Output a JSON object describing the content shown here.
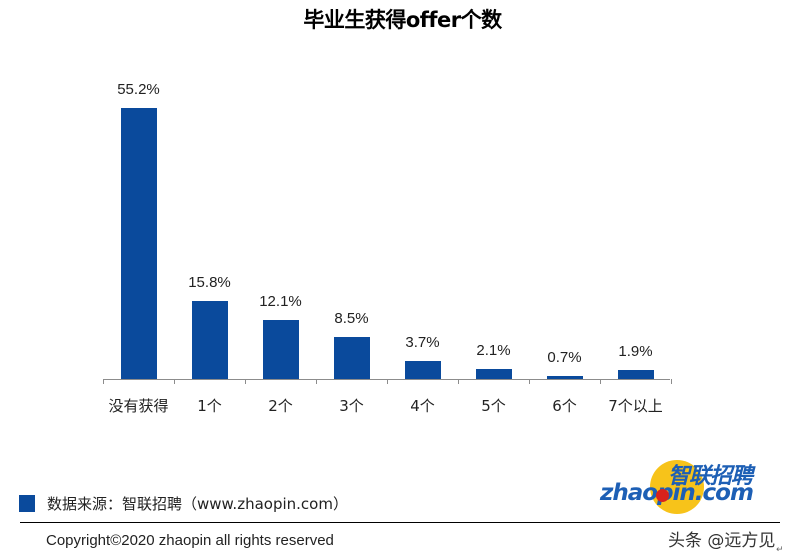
{
  "title": "毕业生获得offer个数",
  "chart_data": {
    "type": "bar",
    "title": "毕业生获得offer个数",
    "categories": [
      "没有获得",
      "1个",
      "2个",
      "3个",
      "4个",
      "5个",
      "6个",
      "7个以上"
    ],
    "values": [
      55.2,
      15.8,
      12.1,
      8.5,
      3.7,
      2.1,
      0.7,
      1.9
    ],
    "labels": [
      "55.2%",
      "15.8%",
      "12.1%",
      "8.5%",
      "3.7%",
      "2.1%",
      "0.7%",
      "1.9%"
    ],
    "xlabel": "",
    "ylabel": "",
    "unit": "%",
    "ylim": [
      0,
      60
    ],
    "grid": false,
    "legend": {
      "position": "bottom-left",
      "entries": [
        "数据来源：智联招聘（www.zhaopin.com）"
      ]
    },
    "bar_color": "#0a4a9c"
  },
  "footer": {
    "source": "数据来源：智联招聘（www.zhaopin.com）",
    "copyright": "Copyright©2020 zhaopin all rights reserved"
  },
  "logo": {
    "cn": "智联招聘",
    "en": "zhaopin.com"
  },
  "watermark": "头条 @远方见",
  "return_mark": "↵"
}
